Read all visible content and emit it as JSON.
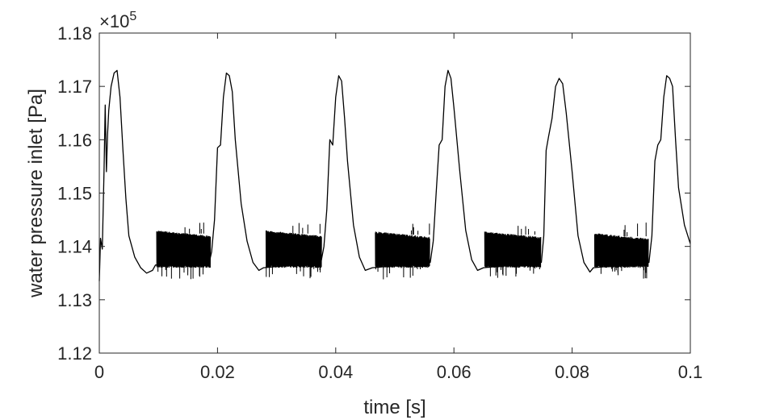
{
  "chart_data": {
    "type": "line",
    "xlabel": "time [s]",
    "ylabel": "water pressure inlet [Pa]",
    "y_exponent": "×10",
    "y_exponent_power": "5",
    "xlim": [
      0,
      0.1
    ],
    "ylim": [
      1.12,
      1.18
    ],
    "xticks": [
      "0",
      "0.02",
      "0.04",
      "0.06",
      "0.08",
      "0.1"
    ],
    "yticks": [
      "1.12",
      "1.13",
      "1.14",
      "1.15",
      "1.16",
      "1.17",
      "1.18"
    ],
    "grid": false,
    "colors": {
      "line": "#000000",
      "axis": "#262626"
    },
    "series": [
      {
        "x": [
          0.0,
          0.0002,
          0.0005,
          0.0008,
          0.001,
          0.0012,
          0.0014,
          0.0016,
          0.002,
          0.0025,
          0.003,
          0.0035,
          0.004,
          0.0045,
          0.005,
          0.006,
          0.007,
          0.008,
          0.009,
          0.0095,
          0.0186,
          0.019,
          0.0195,
          0.02,
          0.0205,
          0.021,
          0.0215,
          0.022,
          0.0225,
          0.023,
          0.024,
          0.025,
          0.026,
          0.027,
          0.0278,
          0.0375,
          0.038,
          0.0385,
          0.039,
          0.0395,
          0.04,
          0.0405,
          0.041,
          0.0415,
          0.042,
          0.043,
          0.044,
          0.045,
          0.0462,
          0.056,
          0.0565,
          0.057,
          0.0575,
          0.058,
          0.0585,
          0.059,
          0.0595,
          0.06,
          0.061,
          0.062,
          0.063,
          0.064,
          0.065,
          0.0748,
          0.0752,
          0.0756,
          0.076,
          0.0766,
          0.0772,
          0.0778,
          0.0784,
          0.079,
          0.08,
          0.081,
          0.082,
          0.083,
          0.0836,
          0.093,
          0.0935,
          0.094,
          0.0945,
          0.095,
          0.0955,
          0.096,
          0.0965,
          0.097,
          0.0975,
          0.098,
          0.099,
          0.1
        ],
        "y": [
          1.1335,
          1.1415,
          1.1395,
          1.1545,
          1.1665,
          1.154,
          1.161,
          1.1655,
          1.17,
          1.1725,
          1.173,
          1.168,
          1.158,
          1.149,
          1.142,
          1.138,
          1.136,
          1.135,
          1.1355,
          1.1365,
          1.137,
          1.139,
          1.145,
          1.1585,
          1.159,
          1.168,
          1.1725,
          1.172,
          1.169,
          1.16,
          1.148,
          1.141,
          1.137,
          1.1355,
          1.136,
          1.137,
          1.14,
          1.147,
          1.16,
          1.159,
          1.168,
          1.172,
          1.171,
          1.164,
          1.156,
          1.144,
          1.138,
          1.1355,
          1.136,
          1.137,
          1.141,
          1.15,
          1.159,
          1.16,
          1.17,
          1.173,
          1.1715,
          1.166,
          1.154,
          1.143,
          1.1375,
          1.1355,
          1.136,
          1.137,
          1.142,
          1.158,
          1.1605,
          1.164,
          1.17,
          1.1715,
          1.1705,
          1.165,
          1.154,
          1.142,
          1.137,
          1.1352,
          1.136,
          1.137,
          1.142,
          1.156,
          1.159,
          1.16,
          1.168,
          1.172,
          1.1715,
          1.17,
          1.16,
          1.151,
          1.144,
          1.1405
        ],
        "oscillation_bands": [
          {
            "x": [
              0.0097,
              0.0188
            ],
            "y": [
              1.136,
              1.143
            ]
          },
          {
            "x": [
              0.0282,
              0.0376
            ],
            "y": [
              1.136,
              1.143
            ]
          },
          {
            "x": [
              0.0467,
              0.0559
            ],
            "y": [
              1.136,
              1.1428
            ]
          },
          {
            "x": [
              0.0652,
              0.0747
            ],
            "y": [
              1.136,
              1.1428
            ]
          },
          {
            "x": [
              0.0838,
              0.0929
            ],
            "y": [
              1.136,
              1.1425
            ]
          }
        ]
      }
    ]
  }
}
